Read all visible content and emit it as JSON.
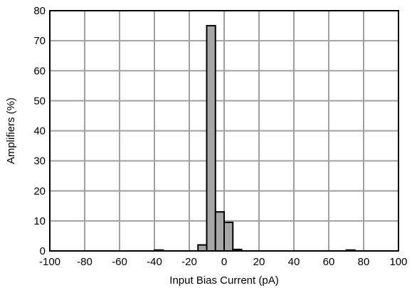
{
  "chart_data": {
    "type": "bar",
    "xlabel": "Input Bias Current (pA)",
    "ylabel": "Amplifiers (%)",
    "xlim": [
      -100,
      100
    ],
    "ylim": [
      0,
      80
    ],
    "grid": true,
    "x_ticks": [
      "-100",
      "-80",
      "-60",
      "-40",
      "-20",
      "0",
      "20",
      "40",
      "60",
      "80",
      "100"
    ],
    "y_ticks": [
      "0",
      "10",
      "20",
      "30",
      "40",
      "50",
      "60",
      "70",
      "80"
    ],
    "bin_width": 5,
    "bins": [
      {
        "x0": -40,
        "x1": -35,
        "value": 0.3
      },
      {
        "x0": -15,
        "x1": -10,
        "value": 2
      },
      {
        "x0": -10,
        "x1": -5,
        "value": 75
      },
      {
        "x0": -5,
        "x1": 0,
        "value": 13
      },
      {
        "x0": 0,
        "x1": 5,
        "value": 9.5
      },
      {
        "x0": 5,
        "x1": 10,
        "value": 0.5
      },
      {
        "x0": 70,
        "x1": 75,
        "value": 0.3
      }
    ],
    "colors": {
      "bar_fill": "#a6a6a6",
      "bar_stroke": "#000000",
      "grid": "#a0a0a0",
      "axis": "#000000"
    }
  }
}
